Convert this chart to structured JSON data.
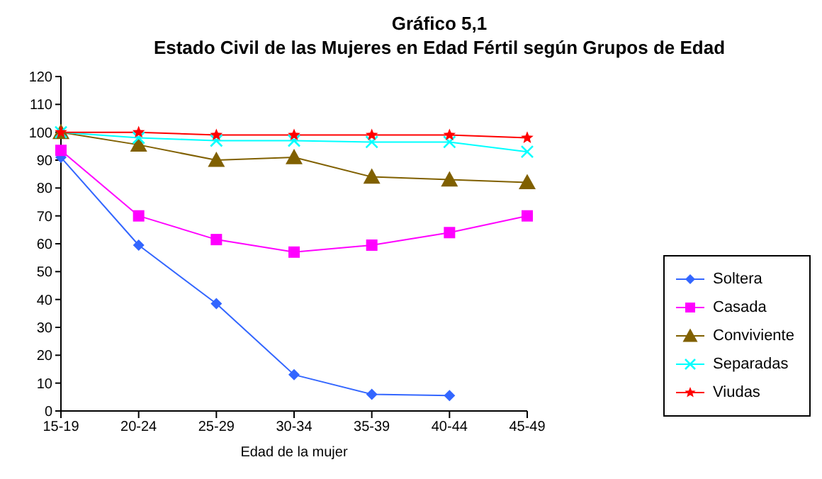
{
  "chart_data": {
    "type": "line",
    "title": "Gráfico 5,1",
    "subtitle": "Estado Civil de las Mujeres en Edad Fértil según Grupos de Edad",
    "xlabel": "Edad de la mujer",
    "categories": [
      "15-19",
      "20-24",
      "25-29",
      "30-34",
      "35-39",
      "40-44",
      "45-49"
    ],
    "ylim": [
      0,
      120
    ],
    "yticks": [
      0,
      10,
      20,
      30,
      40,
      50,
      60,
      70,
      80,
      90,
      100,
      110,
      120
    ],
    "grid": false,
    "legend": "right",
    "series": [
      {
        "name": "Soltera",
        "color": "#3366ff",
        "marker": "diamond",
        "values": [
          91,
          59.5,
          38.5,
          13,
          6,
          5.5,
          null
        ]
      },
      {
        "name": "Casada",
        "color": "#ff00ff",
        "marker": "square",
        "values": [
          93.5,
          70,
          61.5,
          57,
          59.5,
          64,
          70
        ]
      },
      {
        "name": "Conviviente",
        "color": "#806000",
        "marker": "triangle",
        "values": [
          100,
          95.5,
          90,
          91,
          84,
          83,
          82
        ]
      },
      {
        "name": "Separadas",
        "color": "#00ffff",
        "marker": "cross",
        "values": [
          100,
          98,
          97,
          97,
          96.5,
          96.5,
          93
        ]
      },
      {
        "name": "Viudas",
        "color": "#ff0000",
        "marker": "star",
        "values": [
          100,
          100,
          99,
          99,
          99,
          99,
          98
        ]
      }
    ]
  }
}
